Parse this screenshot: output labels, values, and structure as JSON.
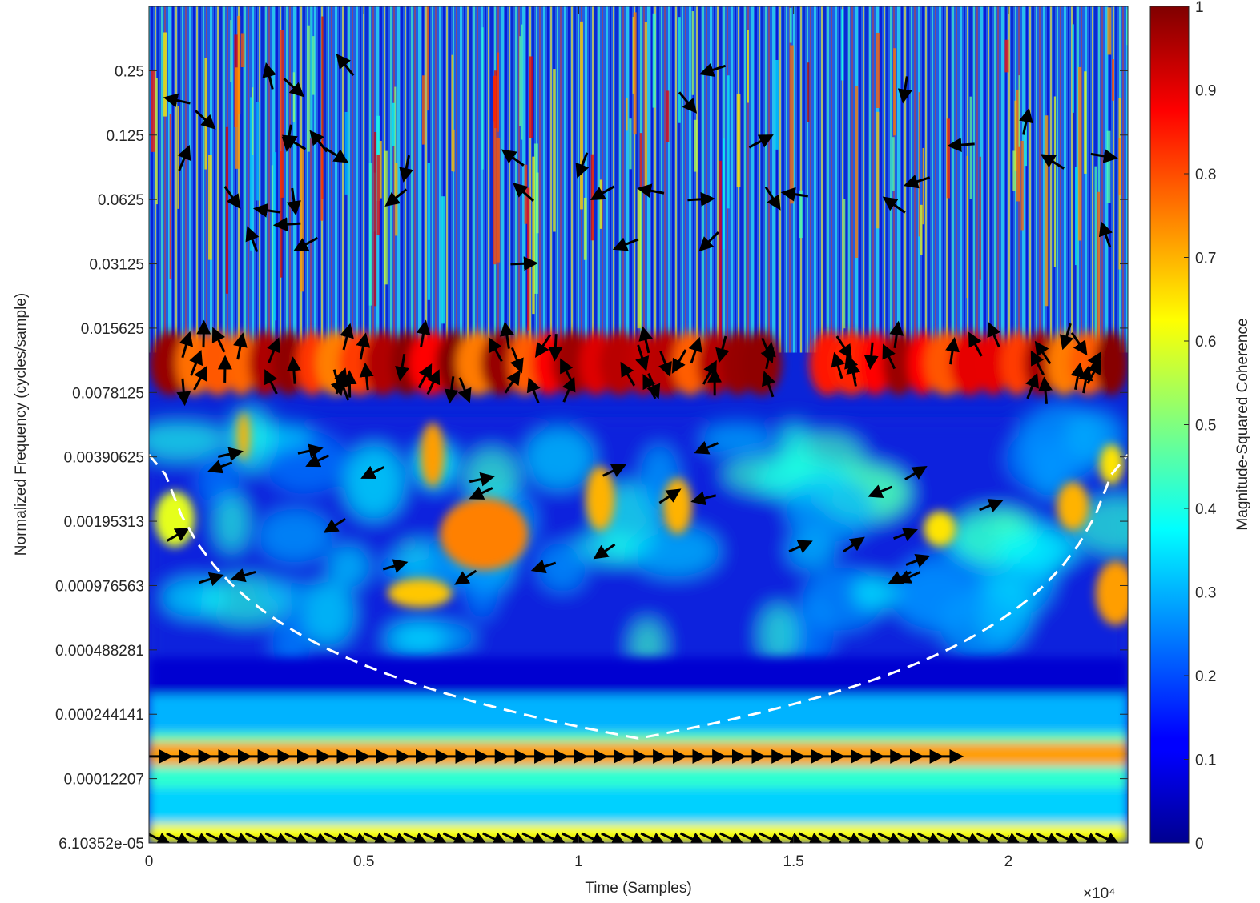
{
  "chart_data": {
    "type": "heatmap",
    "title": "",
    "xlabel": "Time (Samples)",
    "ylabel": "Normalized Frequency  (cycles/sample)",
    "x_tick_labels": [
      "0",
      "0.5",
      "1",
      "1.5",
      "2"
    ],
    "x_ticks": [
      0,
      5000,
      10000,
      15000,
      20000
    ],
    "x_exponent_label": "×10⁴",
    "xlim": [
      0,
      22780
    ],
    "y_scale": "log2",
    "y_tick_labels": [
      "0.25",
      "0.125",
      "0.0625",
      "0.03125",
      "0.015625",
      "0.0078125",
      "0.00390625",
      "0.00195313",
      "0.000976563",
      "0.000488281",
      "0.000244141",
      "0.00012207",
      "6.10352e-05"
    ],
    "y_ticks": [
      0.25,
      0.125,
      0.0625,
      0.03125,
      0.015625,
      0.0078125,
      0.00390625,
      0.00195313,
      0.000976563,
      0.000488281,
      0.000244141,
      0.00012207,
      6.10352e-05
    ],
    "ylim": [
      6.10352e-05,
      0.5
    ],
    "colorbar": {
      "label": "Magnitude-Squared Coherence",
      "ticks": [
        0,
        0.1,
        0.2,
        0.3,
        0.4,
        0.5,
        0.6,
        0.7,
        0.8,
        0.9,
        1
      ],
      "tick_labels": [
        "0",
        "0.1",
        "0.2",
        "0.3",
        "0.4",
        "0.5",
        "0.6",
        "0.7",
        "0.8",
        "0.9",
        "1"
      ],
      "colormap": "jet",
      "range": [
        0,
        1
      ]
    },
    "coherence_bands": [
      {
        "freq_center": 0.0107,
        "coherence": 0.88
      },
      {
        "freq_center": 0.000155,
        "coherence": 0.72
      },
      {
        "freq_center": 6.3e-05,
        "coherence": 0.6
      },
      {
        "freq_center": 0.00135,
        "coherence": 0.7
      }
    ],
    "phase_arrow_rows": [
      {
        "freq": 0.000155,
        "x_start": 200,
        "x_end": 18700,
        "direction": "right"
      },
      {
        "freq": 6.4e-05,
        "x_start": 200,
        "x_end": 22300,
        "direction": "down-right"
      }
    ],
    "cone_of_influence": {
      "style": "dashed",
      "color": "#ffffff"
    }
  }
}
